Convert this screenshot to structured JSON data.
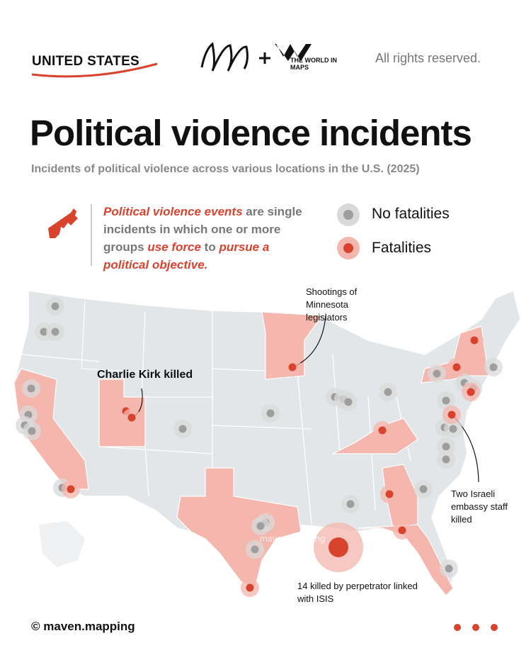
{
  "header": {
    "section": "UNITED STATES",
    "partner_logo_text": "THE WORLD IN MAPS",
    "rights": "All rights reserved."
  },
  "title": "Political violence incidents",
  "subtitle": "Incidents of political violence across various locations in the U.S. (2025)",
  "definition": {
    "parts": [
      "Political violence events",
      " are single incidents in which one or more groups ",
      "use force",
      " to ",
      "pursue a political objective."
    ]
  },
  "legend": {
    "items": [
      "No fatalities",
      "Fatalities"
    ]
  },
  "annotations": [
    "Shootings of Minnesota legislators",
    "Charlie Kirk killed",
    "Two Israeli embassy staff killed",
    "14 killed by perpetrator linked with ISIS"
  ],
  "watermark": "maven.mapping",
  "footer": {
    "credit": "© maven.mapping"
  }
}
